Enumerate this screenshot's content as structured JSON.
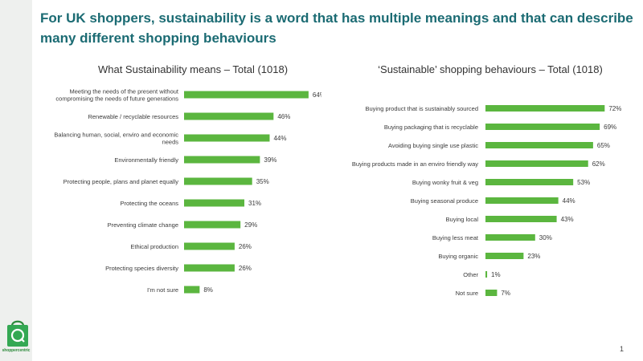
{
  "slide": {
    "title": "For UK shoppers, sustainability is a word that has multiple meanings and that can describe many different shopping behaviours",
    "page_number": "1",
    "logo_text": "shoppercentric"
  },
  "colors": {
    "bar": "#5bb63f",
    "title": "#1b6b73",
    "sidebar": "#eef0ee"
  },
  "chart_data": [
    {
      "type": "bar",
      "orientation": "horizontal",
      "title": "What Sustainability means – Total (1018)",
      "categories": [
        "Meeting the needs of the present without compromising the needs of future generations",
        "Renewable / recyclable resources",
        "Balancing human, social, enviro and economic needs",
        "Environmentally friendly",
        "Protecting people, plans and planet equally",
        "Protecting the oceans",
        "Preventing climate change",
        "Ethical production",
        "Protecting species diversity",
        "I'm not sure"
      ],
      "values": [
        64,
        46,
        44,
        39,
        35,
        31,
        29,
        26,
        26,
        8
      ],
      "value_labels": [
        "64%",
        "46%",
        "44%",
        "39%",
        "35%",
        "31%",
        "29%",
        "26%",
        "26%",
        "8%"
      ],
      "xlim": [
        0,
        100
      ],
      "grid": false,
      "legend": "none"
    },
    {
      "type": "bar",
      "orientation": "horizontal",
      "title": "‘Sustainable’ shopping behaviours – Total (1018)",
      "categories": [
        "Buying product that is sustainably sourced",
        "Buying packaging that is recyclable",
        "Avoiding buying single use plastic",
        "Buying products made in an enviro friendly way",
        "Buying wonky fruit & veg",
        "Buying seasonal produce",
        "Buying local",
        "Buying less meat",
        "Buying organic",
        "Other",
        "Not sure"
      ],
      "values": [
        72,
        69,
        65,
        62,
        53,
        44,
        43,
        30,
        23,
        1,
        7
      ],
      "value_labels": [
        "72%",
        "69%",
        "65%",
        "62%",
        "53%",
        "44%",
        "43%",
        "30%",
        "23%",
        "1%",
        "7%"
      ],
      "xlim": [
        0,
        100
      ],
      "grid": false,
      "legend": "none"
    }
  ]
}
